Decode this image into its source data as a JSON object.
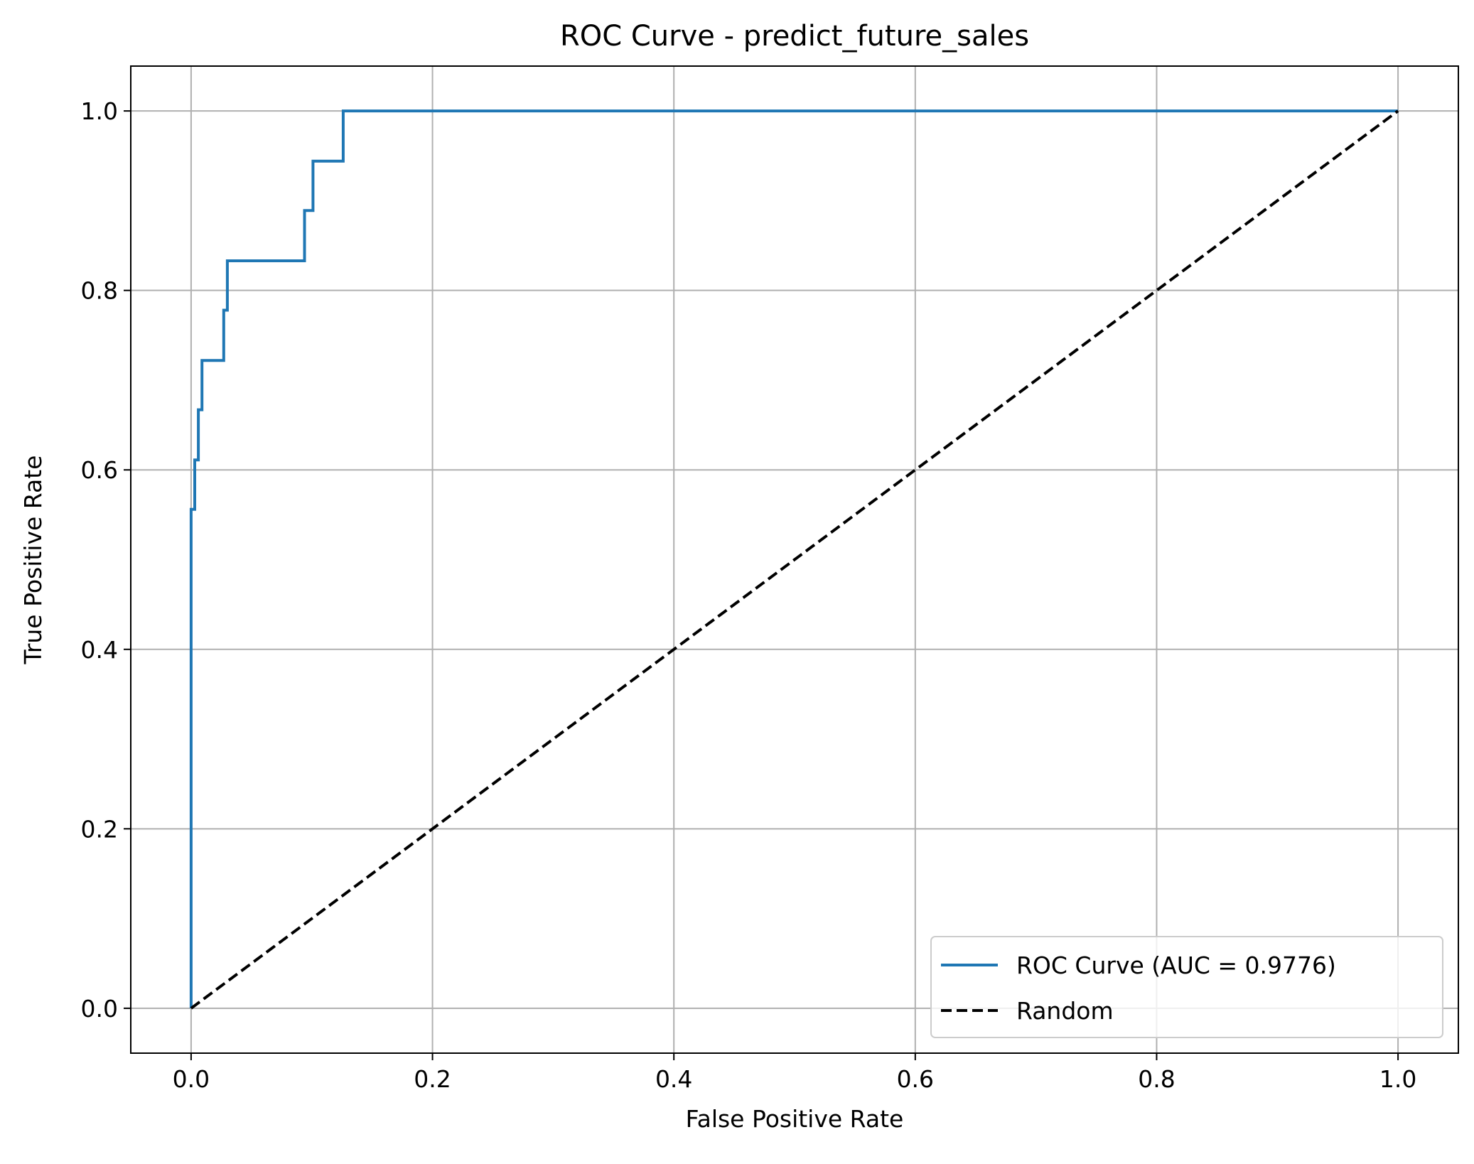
{
  "chart_data": {
    "type": "line",
    "title": "ROC Curve - predict_future_sales",
    "xlabel": "False Positive Rate",
    "ylabel": "True Positive Rate",
    "xlim": [
      -0.05,
      1.05
    ],
    "ylim": [
      -0.05,
      1.05
    ],
    "xticks": [
      "0.0",
      "0.2",
      "0.4",
      "0.6",
      "0.8",
      "1.0"
    ],
    "yticks": [
      "0.0",
      "0.2",
      "0.4",
      "0.6",
      "0.8",
      "1.0"
    ],
    "grid": true,
    "legend_position": "lower-right",
    "series": [
      {
        "name": "ROC Curve (AUC = 0.9776)",
        "color": "#1f77b4",
        "style": "solid",
        "x": [
          0.0,
          0.0,
          0.003,
          0.003,
          0.006,
          0.006,
          0.009,
          0.009,
          0.027,
          0.027,
          0.03,
          0.03,
          0.094,
          0.094,
          0.101,
          0.101,
          0.126,
          0.126,
          1.0
        ],
        "y": [
          0.0,
          0.556,
          0.556,
          0.611,
          0.611,
          0.667,
          0.667,
          0.722,
          0.722,
          0.778,
          0.778,
          0.833,
          0.833,
          0.889,
          0.889,
          0.944,
          0.944,
          1.0,
          1.0
        ]
      },
      {
        "name": "Random",
        "color": "#000000",
        "style": "dashed",
        "x": [
          0.0,
          1.0
        ],
        "y": [
          0.0,
          1.0
        ]
      }
    ]
  }
}
